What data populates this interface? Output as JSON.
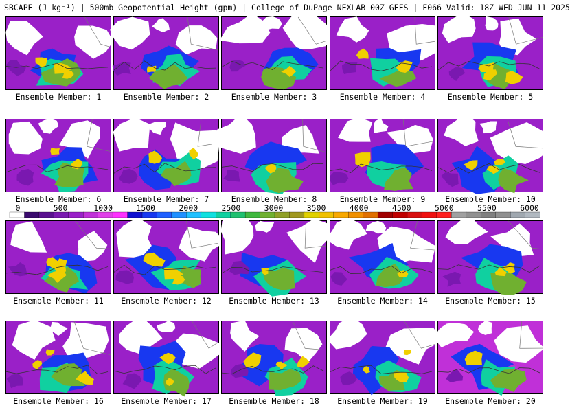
{
  "title": "SBCAPE (J kg⁻¹) | 500mb Geopotential Height (gpm) | College of DuPage NEXLAB 00Z GEFS | F066 Valid: 18Z WED JUN 11 2025",
  "panels": [
    {
      "label": "Ensemble Member: 1"
    },
    {
      "label": "Ensemble Member: 2"
    },
    {
      "label": "Ensemble Member: 3"
    },
    {
      "label": "Ensemble Member: 4"
    },
    {
      "label": "Ensemble Member: 5"
    },
    {
      "label": "Ensemble Member: 6"
    },
    {
      "label": "Ensemble Member: 7"
    },
    {
      "label": "Ensemble Member: 8"
    },
    {
      "label": "Ensemble Member: 9"
    },
    {
      "label": "Ensemble Member: 10"
    },
    {
      "label": "Ensemble Member: 11"
    },
    {
      "label": "Ensemble Member: 12"
    },
    {
      "label": "Ensemble Member: 13"
    },
    {
      "label": "Ensemble Member: 14"
    },
    {
      "label": "Ensemble Member: 15"
    },
    {
      "label": "Ensemble Member: 16"
    },
    {
      "label": "Ensemble Member: 17"
    },
    {
      "label": "Ensemble Member: 18"
    },
    {
      "label": "Ensemble Member: 19"
    },
    {
      "label": "Ensemble Member: 20"
    }
  ],
  "colorbar": {
    "ticks": [
      "0",
      "500",
      "1000",
      "1500",
      "2000",
      "2500",
      "3000",
      "3500",
      "4000",
      "4500",
      "5000",
      "5500",
      "6000"
    ],
    "colors": [
      "#ffffff",
      "#3a0a6e",
      "#5a108f",
      "#7a18b0",
      "#9a20c8",
      "#c030d8",
      "#e040e8",
      "#ff30ff",
      "#1010d0",
      "#1838f0",
      "#2060ff",
      "#2090ff",
      "#20c0ff",
      "#10e0e0",
      "#10d0a0",
      "#20c070",
      "#40b840",
      "#70b030",
      "#90a028",
      "#a09820",
      "#e0d000",
      "#f0c000",
      "#f8a800",
      "#f09000",
      "#e07000",
      "#a00000",
      "#c00000",
      "#d81010",
      "#f01010",
      "#ff2020",
      "#a0a0a0",
      "#909090",
      "#808080",
      "#909090",
      "#a0a8b0",
      "#b0b8c0"
    ],
    "field_colors": {
      "low": "#7a18b0",
      "mid": "#1838f0",
      "moist": "#10d0a0",
      "high": "#70b030",
      "peak": "#f0d000"
    }
  }
}
